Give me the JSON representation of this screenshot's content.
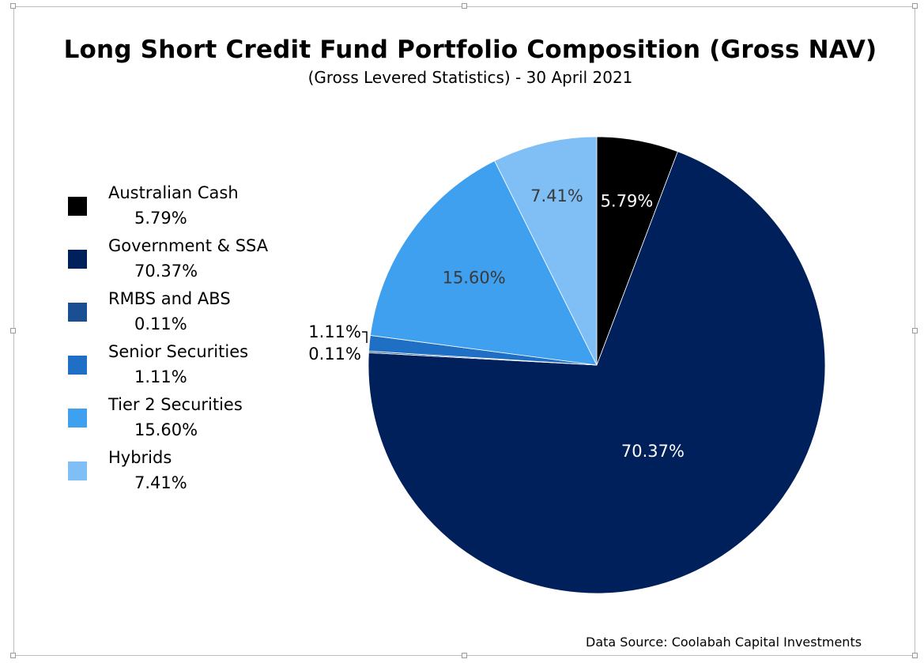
{
  "chart_data": {
    "type": "pie",
    "title": "Long Short Credit Fund Portfolio Composition (Gross NAV)",
    "subtitle": "(Gross Levered Statistics) - 30 April 2021",
    "legend_position": "left",
    "slices": [
      {
        "name": "Australian Cash",
        "value": 5.79,
        "label": "5.79%",
        "color": "#000000",
        "label_color": "#ffffff"
      },
      {
        "name": "Government & SSA",
        "value": 70.37,
        "label": "70.37%",
        "color": "#00205b",
        "label_color": "#ffffff"
      },
      {
        "name": "RMBS and ABS",
        "value": 0.11,
        "label": "0.11%",
        "color": "#1a4f94",
        "label_color": "#000000"
      },
      {
        "name": "Senior Securities",
        "value": 1.11,
        "label": "1.11%",
        "color": "#1f6fc4",
        "label_color": "#000000"
      },
      {
        "name": "Tier 2 Securities",
        "value": 15.6,
        "label": "15.60%",
        "color": "#3fa0ef",
        "label_color": "#3a3a3a"
      },
      {
        "name": "Hybrids",
        "value": 7.41,
        "label": "7.41%",
        "color": "#7fbff5",
        "label_color": "#3a3a3a"
      }
    ]
  },
  "footer": {
    "source": "Data Source: Coolabah Capital Investments"
  }
}
